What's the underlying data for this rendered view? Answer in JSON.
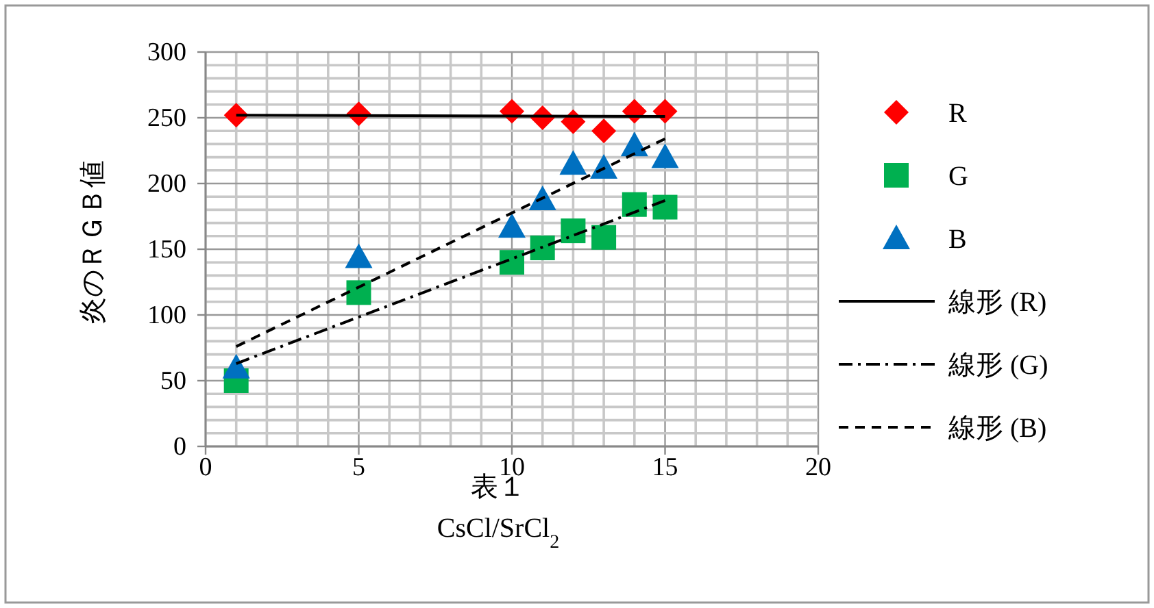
{
  "chart_data": {
    "type": "scatter",
    "title": "表１",
    "xlabel": "CsCl/SrCl$_{2}$",
    "ylabel": "炎のＲＧＢ値",
    "xlim": [
      0,
      20
    ],
    "ylim": [
      0,
      300
    ],
    "xticks": [
      0,
      5,
      10,
      15,
      20
    ],
    "yticks": [
      0,
      50,
      100,
      150,
      200,
      250,
      300
    ],
    "grid": true,
    "legend": "right",
    "series": [
      {
        "name": "R",
        "marker": "diamond",
        "color": "#ff0000",
        "x": [
          1,
          5,
          10,
          11,
          12,
          13,
          14,
          15
        ],
        "values": [
          252,
          253,
          255,
          250,
          247,
          240,
          255,
          255
        ]
      },
      {
        "name": "G",
        "marker": "square",
        "color": "#00b050",
        "x": [
          1,
          5,
          10,
          11,
          12,
          13,
          14,
          15
        ],
        "values": [
          50,
          117,
          140,
          151,
          164,
          159,
          184,
          182
        ]
      },
      {
        "name": "B",
        "marker": "triangle",
        "color": "#0070c0",
        "x": [
          1,
          5,
          10,
          11,
          12,
          13,
          14,
          15
        ],
        "values": [
          60,
          144,
          167,
          188,
          215,
          212,
          229,
          220
        ]
      },
      {
        "name": "線形 (R)",
        "type": "line",
        "marker": "none",
        "line_style": "solid",
        "color": "#000000",
        "x": [
          1,
          15
        ],
        "values": [
          252,
          251
        ]
      },
      {
        "name": "線形 (G)",
        "type": "line",
        "marker": "none",
        "line_style": "dashdot",
        "color": "#000000",
        "x": [
          1,
          15
        ],
        "values": [
          63,
          187
        ]
      },
      {
        "name": "線形 (B)",
        "type": "line",
        "marker": "none",
        "line_style": "dashed",
        "color": "#000000",
        "x": [
          1,
          15
        ],
        "values": [
          76,
          234
        ]
      }
    ]
  }
}
